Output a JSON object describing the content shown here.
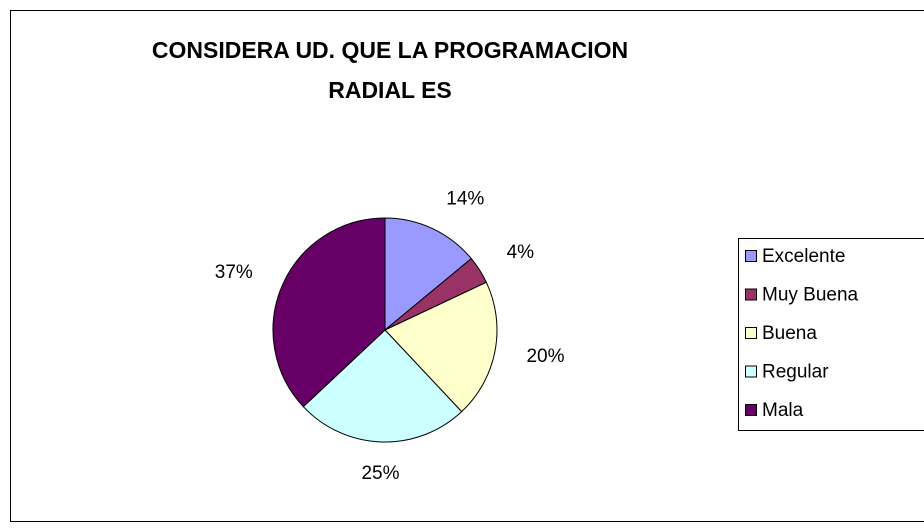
{
  "chart_data": {
    "type": "pie",
    "title": "CONSIDERA UD. QUE LA PROGRAMACION RADIAL ES",
    "categories": [
      "Excelente",
      "Muy Buena",
      "Buena",
      "Regular",
      "Mala"
    ],
    "values": [
      14,
      4,
      20,
      25,
      37
    ],
    "value_labels": [
      "14%",
      "4%",
      "20%",
      "25%",
      "37%"
    ],
    "colors": [
      "#9999ff",
      "#993366",
      "#ffffcc",
      "#ccffff",
      "#660066"
    ],
    "legend": "right"
  }
}
